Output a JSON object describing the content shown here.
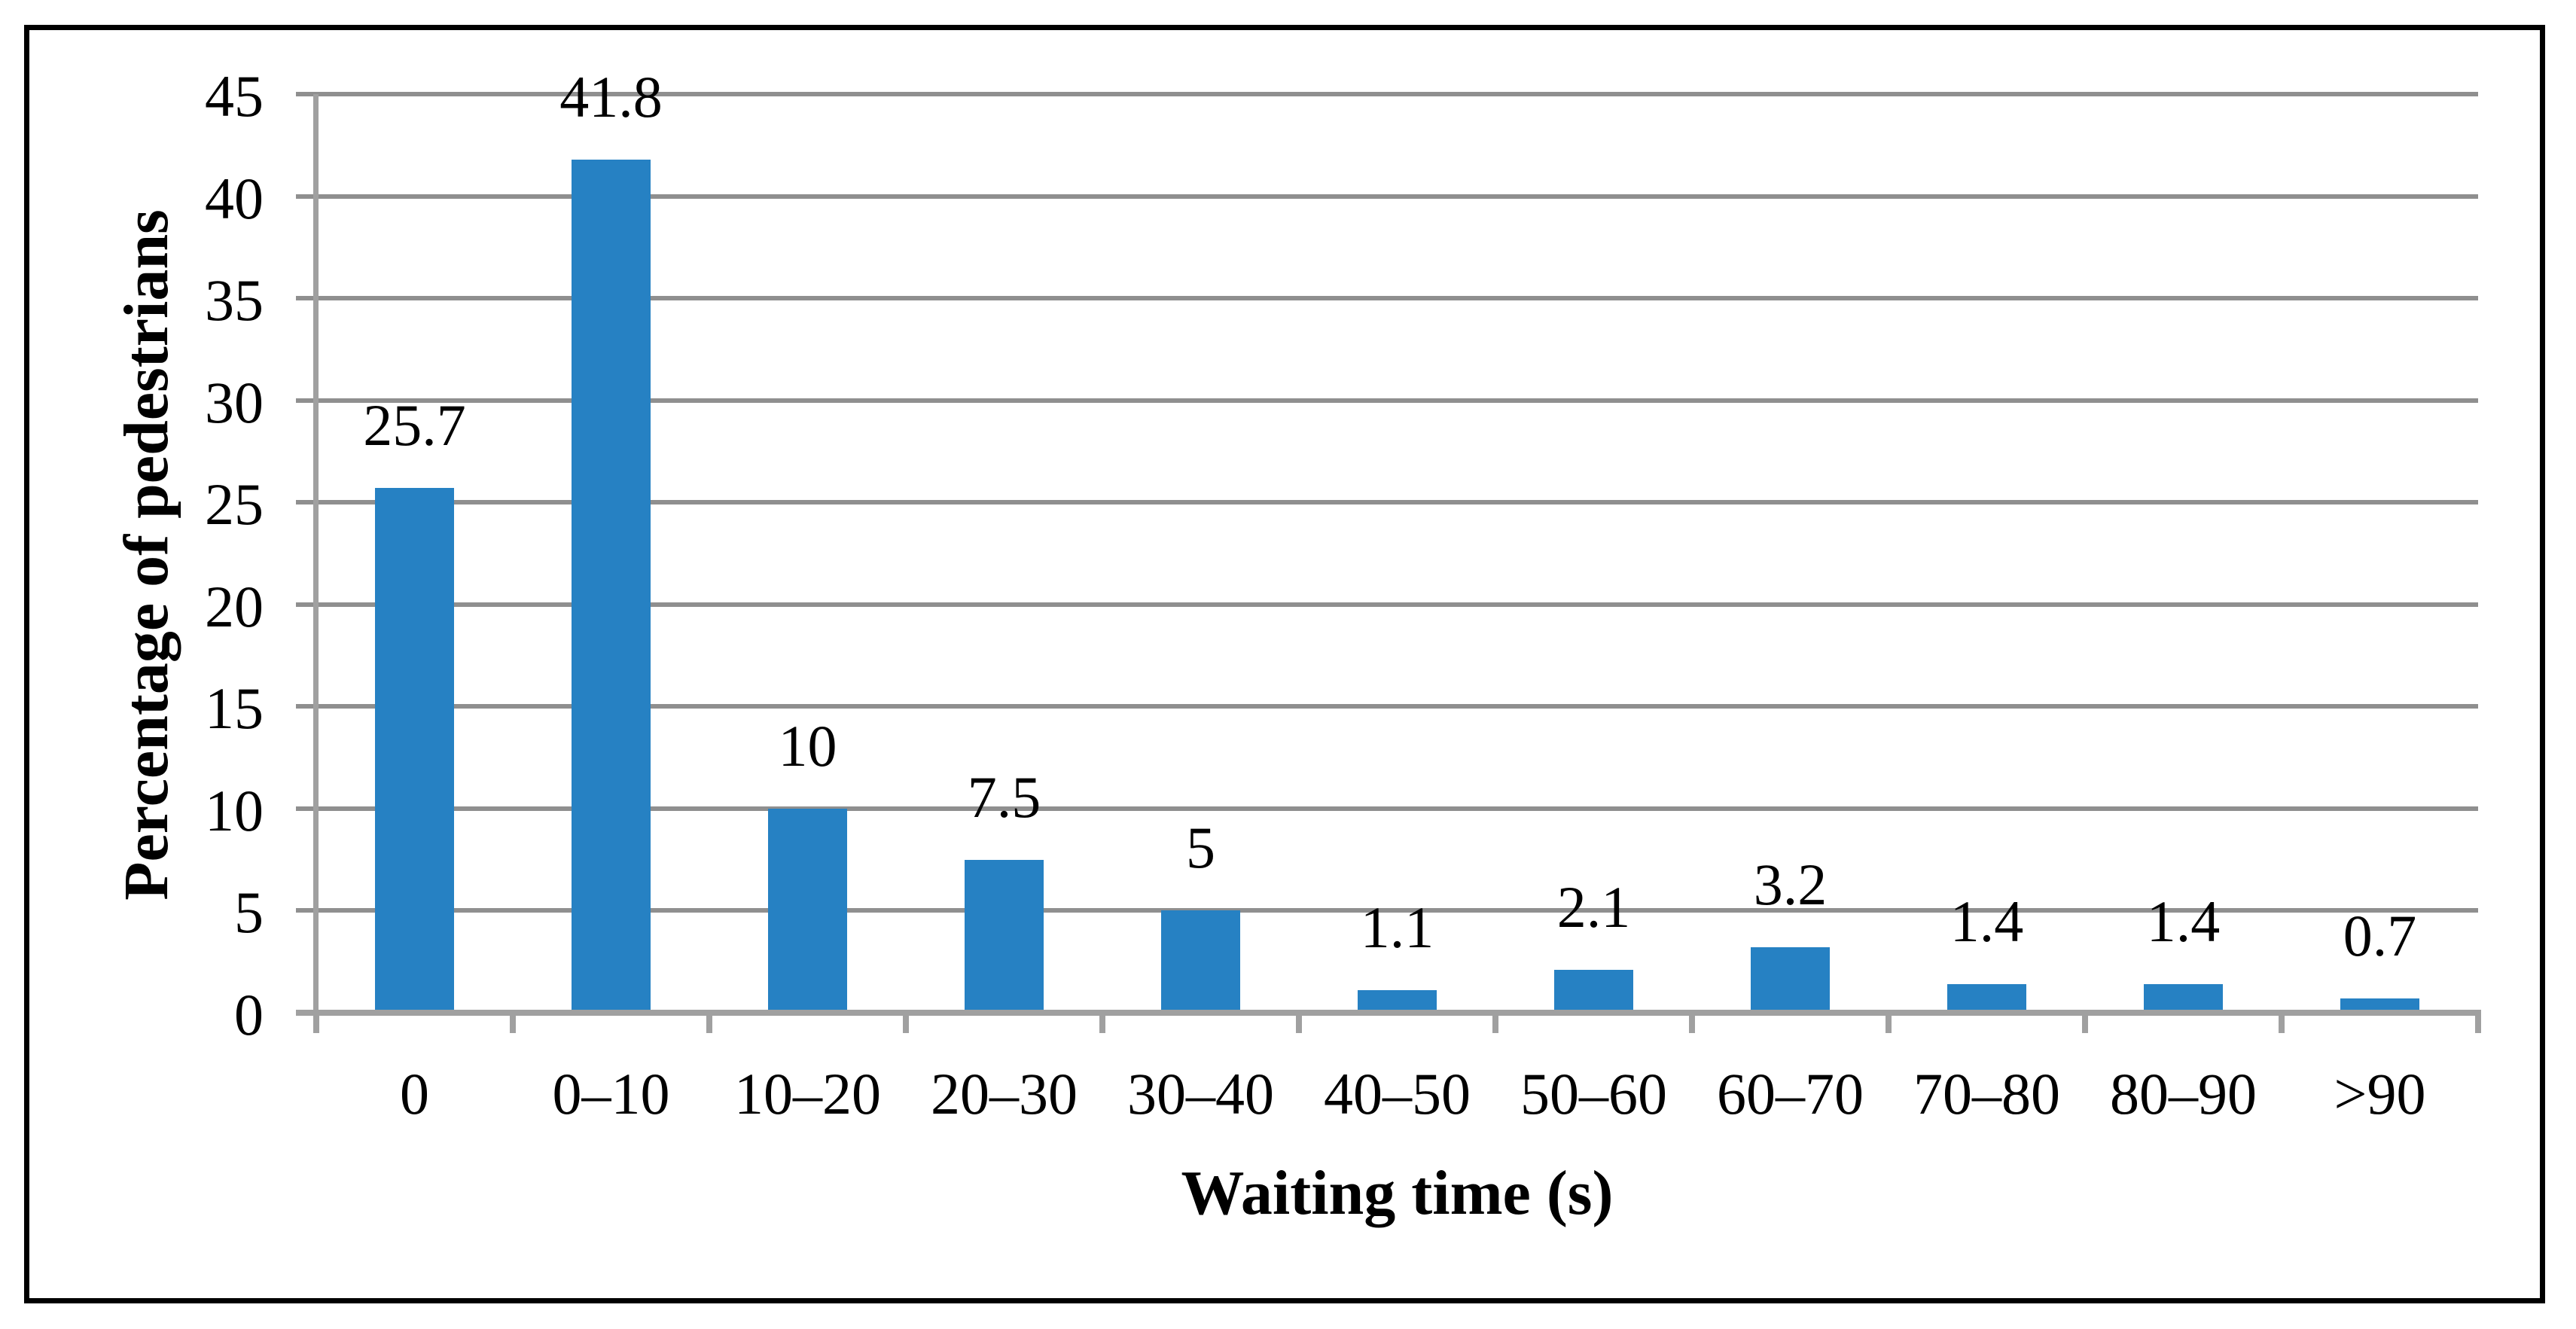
{
  "chart_data": {
    "type": "bar",
    "title": "",
    "categories": [
      "0",
      "0–10",
      "10–20",
      "20–30",
      "30–40",
      "40–50",
      "50–60",
      "60–70",
      "70–80",
      "80–90",
      ">90"
    ],
    "values": [
      25.7,
      41.8,
      10,
      7.5,
      5,
      1.1,
      2.1,
      3.2,
      1.4,
      1.4,
      0.7
    ],
    "data_labels": [
      "25.7",
      "41.8",
      "10",
      "7.5",
      "5",
      "1.1",
      "2.1",
      "3.2",
      "1.4",
      "1.4",
      "0.7"
    ],
    "xlabel": "Waiting time (s)",
    "ylabel": "Percentage of pedestrians",
    "ylim": [
      0,
      45
    ],
    "ytick_step": 5,
    "yticks": [
      "45",
      "40",
      "35",
      "30",
      "25",
      "20",
      "15",
      "10",
      "5",
      "0"
    ],
    "grid": "horizontal-major",
    "legend": "none",
    "bar_color": "#2681C3",
    "gridline_color": "#8F8F8F",
    "axis_color": "#A0A0A0",
    "text_color": "#000000",
    "frame_color": "#000000"
  }
}
